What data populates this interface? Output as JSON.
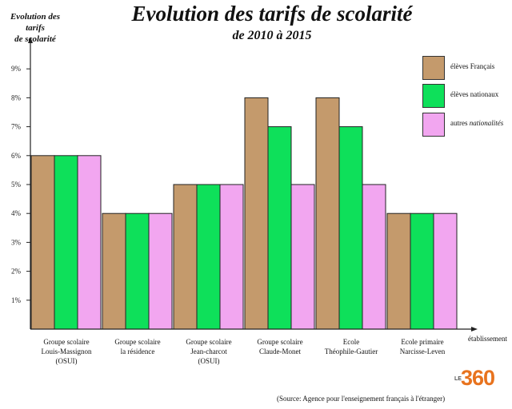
{
  "header": {
    "title": "Evolution  des tarifs de scolarité",
    "subtitle": "de 2010 à 2015",
    "ylabel_line1": "Evolution  des tarifs",
    "ylabel_line2": "de scolarité",
    "xlabel": "établissement"
  },
  "legend": [
    {
      "label": "élèves Français",
      "color": "#c49a6c"
    },
    {
      "label": "élèves nationaux",
      "color": "#0ee05a"
    },
    {
      "label_plain": "autres ",
      "label_italic": "nationalités",
      "color": "#f2a6f0"
    }
  ],
  "categories_text": [
    {
      "line1": "Groupe scolaire",
      "line2": "Louis-Massignon",
      "line3": "(OSUI)"
    },
    {
      "line1": "Groupe scolaire",
      "line2": "la résidence",
      "line3": ""
    },
    {
      "line1": "Groupe scolaire",
      "line2": "Jean-charcot",
      "line3": "(OSUI)"
    },
    {
      "line1": "Groupe scolaire",
      "line2": "Claude-Monet",
      "line3": ""
    },
    {
      "line1": "Ecole",
      "line2": "Théophile-Gautier",
      "line3": ""
    },
    {
      "line1": "Ecole primaire",
      "line2": "Narcisse-Leven",
      "line3": ""
    }
  ],
  "source": "(Source: Agence pour l'enseignement français à l'étranger)",
  "logo": {
    "prefix": "LE",
    "number": "360"
  },
  "chart_data": {
    "type": "bar",
    "categories": [
      "Groupe scolaire Louis-Massignon (OSUI)",
      "Groupe scolaire la résidence",
      "Groupe scolaire Jean-charcot (OSUI)",
      "Groupe scolaire Claude-Monet",
      "Ecole Théophile-Gautier",
      "Ecole primaire Narcisse-Leven"
    ],
    "series": [
      {
        "name": "élèves Français",
        "color": "#c49a6c",
        "values": [
          6,
          4,
          5,
          8,
          8,
          4
        ]
      },
      {
        "name": "élèves nationaux",
        "color": "#0ee05a",
        "values": [
          6,
          4,
          5,
          7,
          7,
          4
        ]
      },
      {
        "name": "autres nationalités",
        "color": "#f2a6f0",
        "values": [
          6,
          4,
          5,
          5,
          5,
          4
        ]
      }
    ],
    "yticks": [
      "1%",
      "2%",
      "3%",
      "4%",
      "5%",
      "6%",
      "7%",
      "8%",
      "9%"
    ],
    "ylim": [
      0,
      9
    ],
    "grid": false,
    "legend_position": "top-right"
  }
}
